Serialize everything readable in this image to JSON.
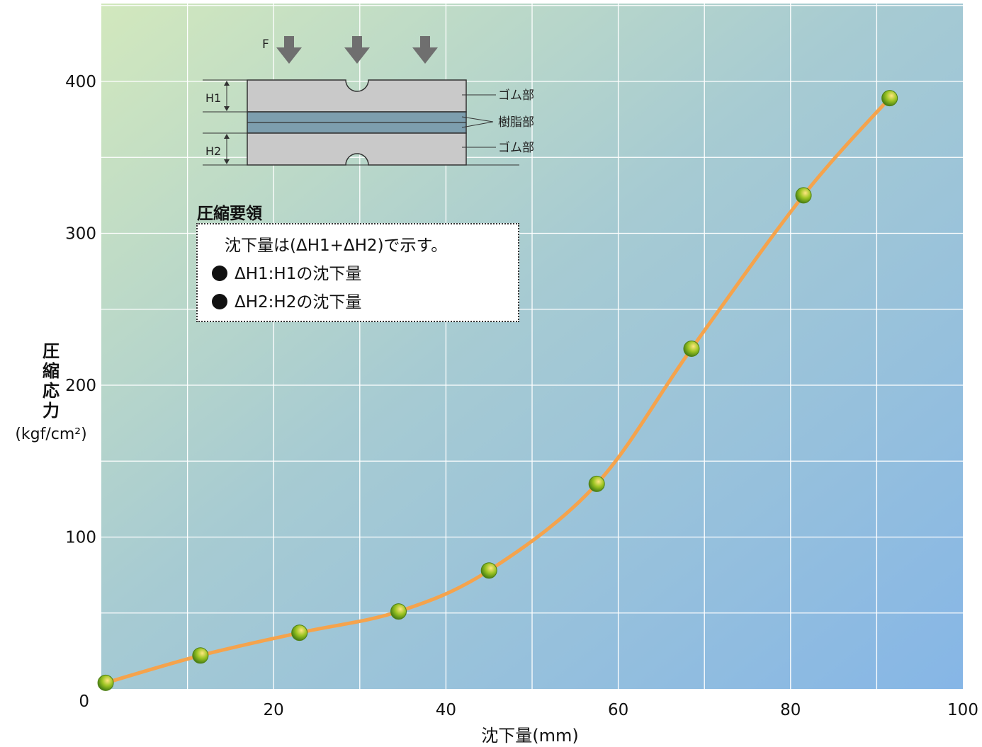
{
  "chart_data": {
    "type": "line",
    "xlabel": "沈下量(mm)",
    "ylabel_chars": [
      "圧",
      "縮",
      "応",
      "力"
    ],
    "ylabel_unit": "(kgf/cm²)",
    "xlim": [
      0,
      100
    ],
    "ylim": [
      0,
      450
    ],
    "x_ticks": [
      "20",
      "40",
      "60",
      "80",
      "100"
    ],
    "x_tick_values": [
      20,
      40,
      60,
      80,
      100
    ],
    "y_ticks": [
      "0",
      "100",
      "200",
      "300",
      "400"
    ],
    "y_tick_values": [
      0,
      100,
      200,
      300,
      400
    ],
    "grid": true,
    "series": [
      {
        "x": [
          0.5,
          11.5,
          23,
          34.5,
          45,
          57.5,
          68.5,
          81.5,
          91.5
        ],
        "y": [
          4,
          22,
          37,
          51,
          78,
          135,
          224,
          325,
          389
        ]
      }
    ],
    "colors": {
      "line": "#f5a34c",
      "marker": "#8fb820",
      "grid": "#ffffff",
      "bg_top_left": "#d2e8bd",
      "bg_bottom_right": "#88b8e4"
    }
  },
  "diagram": {
    "force_label": "F",
    "h1_label": "H1",
    "h2_label": "H2",
    "rubber_top_label": "ゴム部",
    "resin_label": "樹脂部",
    "rubber_bottom_label": "ゴム部"
  },
  "legend": {
    "title": "圧縮要領",
    "line1": "沈下量は(ΔH1+ΔH2)で示す。",
    "line2": "ΔH1:H1の沈下量",
    "line3": "ΔH2:H2の沈下量"
  }
}
